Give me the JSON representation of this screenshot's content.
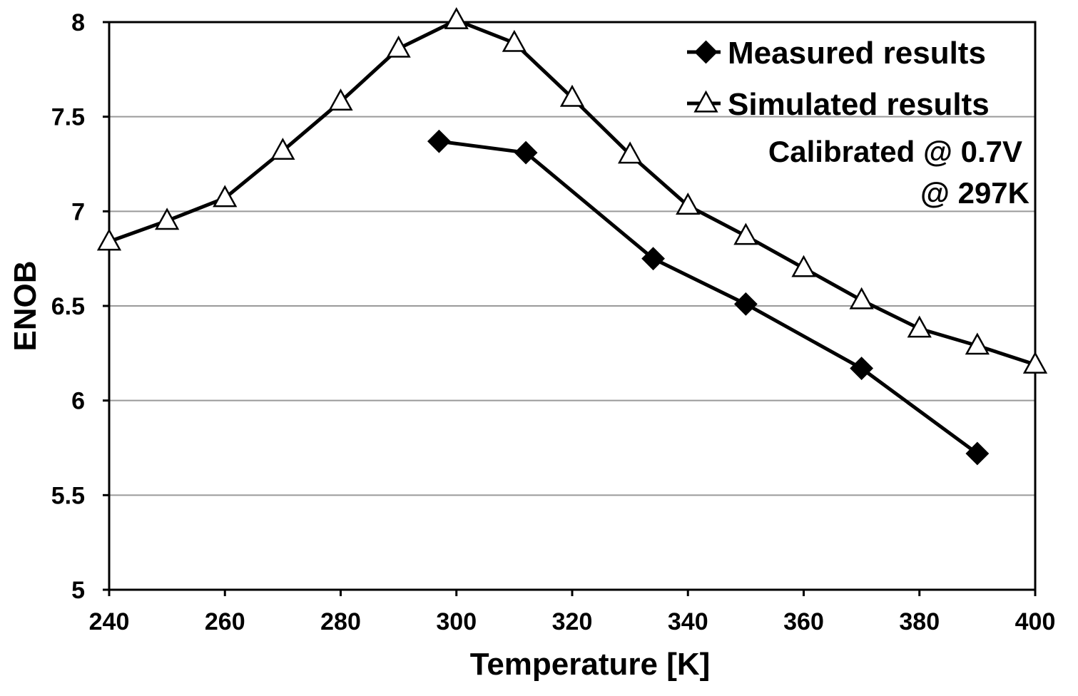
{
  "chart_data": {
    "type": "line",
    "xlabel": "Temperature [K]",
    "ylabel": "ENOB",
    "xlim": [
      240,
      400
    ],
    "ylim": [
      5,
      8
    ],
    "x_ticks": [
      240,
      260,
      280,
      300,
      320,
      340,
      360,
      380,
      400
    ],
    "y_ticks": [
      5,
      5.5,
      6,
      6.5,
      7,
      7.5,
      8
    ],
    "y_tick_labels": [
      "5",
      "5.5",
      "6",
      "6.5",
      "7",
      "7.5",
      "8"
    ],
    "grid": "horizontal",
    "legend_position": "top-right",
    "series": [
      {
        "name": "Measured results",
        "marker": "diamond-filled",
        "color": "#000000",
        "x": [
          297,
          312,
          334,
          350,
          370,
          390
        ],
        "y": [
          7.37,
          7.31,
          6.75,
          6.51,
          6.17,
          5.72
        ]
      },
      {
        "name": "Simulated results",
        "marker": "triangle-open",
        "color": "#000000",
        "x": [
          240,
          250,
          260,
          270,
          280,
          290,
          300,
          310,
          320,
          330,
          340,
          350,
          360,
          370,
          380,
          390,
          400
        ],
        "y": [
          6.84,
          6.95,
          7.07,
          7.32,
          7.58,
          7.86,
          8.01,
          7.89,
          7.6,
          7.3,
          7.03,
          6.87,
          6.7,
          6.53,
          6.38,
          6.29,
          6.19
        ]
      }
    ],
    "annotations": [
      "Calibrated @ 0.7V",
      "@ 297K"
    ]
  }
}
